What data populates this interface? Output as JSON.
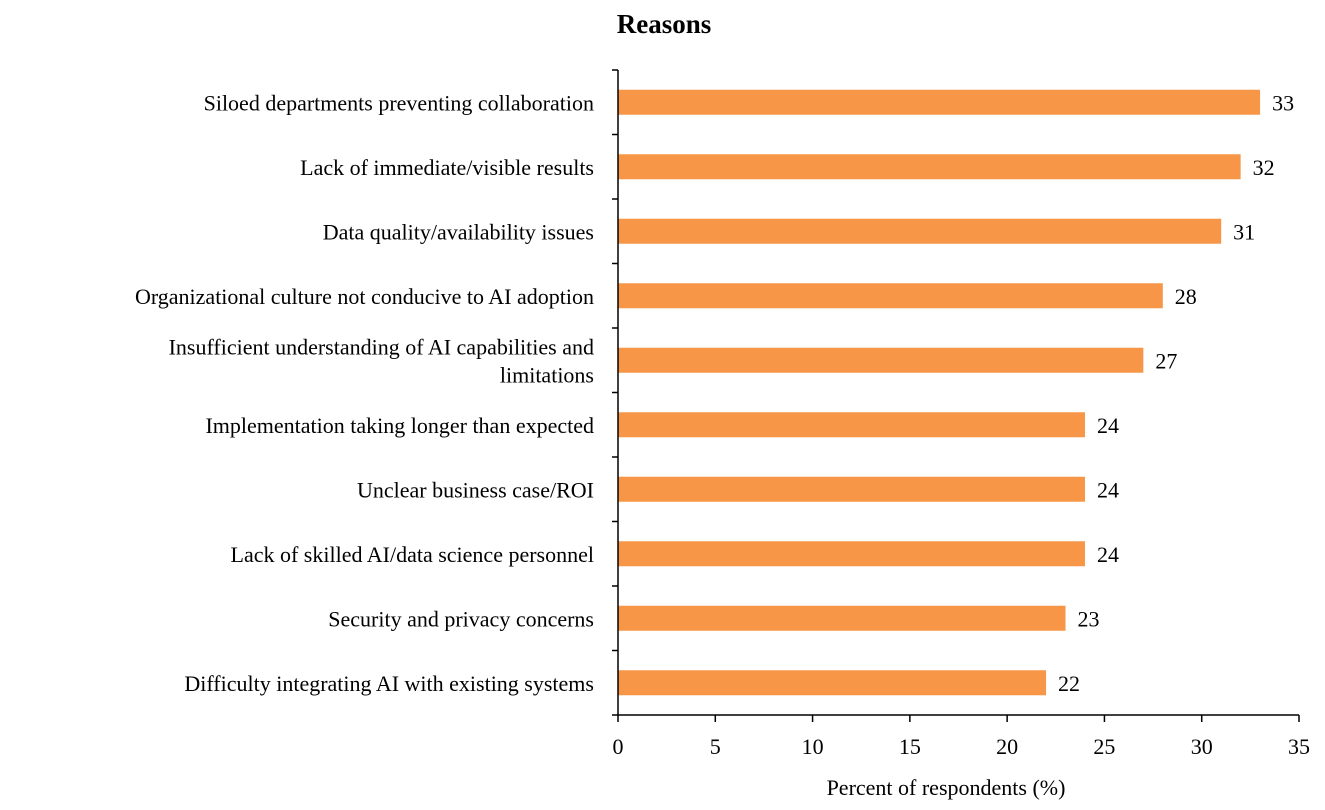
{
  "chart_data": {
    "type": "bar",
    "orientation": "horizontal",
    "title": "Reasons",
    "xlabel": "Percent of respondents (%)",
    "ylabel": "",
    "xlim": [
      0,
      35
    ],
    "xticks": [
      0,
      5,
      10,
      15,
      20,
      25,
      30,
      35
    ],
    "grid": false,
    "bar_color": "#F79646",
    "categories": [
      [
        "Siloed departments preventing collaboration"
      ],
      [
        "Lack of immediate/visible results"
      ],
      [
        "Data quality/availability issues"
      ],
      [
        "Organizational culture not conducive to AI adoption"
      ],
      [
        "Insufficient understanding of AI capabilities and",
        "limitations"
      ],
      [
        "Implementation taking longer than expected"
      ],
      [
        "Unclear business case/ROI"
      ],
      [
        "Lack of skilled AI/data science personnel"
      ],
      [
        "Security and privacy concerns"
      ],
      [
        "Difficulty integrating AI with existing systems"
      ]
    ],
    "values": [
      33,
      32,
      31,
      28,
      27,
      24,
      24,
      24,
      23,
      22
    ]
  }
}
